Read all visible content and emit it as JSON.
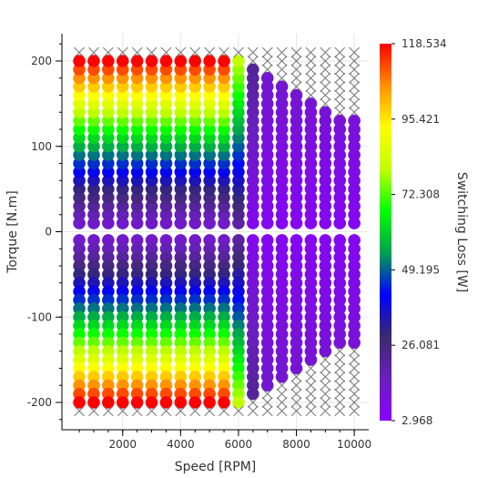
{
  "chart_data": {
    "type": "scatter",
    "title": "",
    "xlabel": "Speed [RPM]",
    "ylabel": "Torque [N.m]",
    "xlim": [
      -100,
      10500
    ],
    "ylim": [
      -232,
      232
    ],
    "xticks": [
      2000,
      4000,
      6000,
      8000,
      10000
    ],
    "xtick_labels": [
      "2000",
      "4000",
      "6000",
      "8000",
      "10000"
    ],
    "yticks": [
      -200,
      -100,
      0,
      100,
      200
    ],
    "ytick_labels": [
      "-200",
      "-100",
      "0",
      "100",
      "200"
    ],
    "grid": true,
    "speeds": [
      500,
      1000,
      1500,
      2000,
      2500,
      3000,
      3500,
      4000,
      4500,
      5000,
      5500,
      6000,
      6500,
      7000,
      7500,
      8000,
      8500,
      9000,
      9500,
      10000
    ],
    "torque_step": 10,
    "max_torque_by_speed": [
      200,
      200,
      200,
      200,
      200,
      200,
      200,
      200,
      200,
      200,
      200,
      200,
      190,
      180,
      170,
      160,
      150,
      145,
      135,
      130
    ],
    "grid_max_torque": 210,
    "infeasible_marker": "x-marker",
    "loss_model": "Loss increases with |torque|; low-speed region (<=6000 RPM) spans the full color range, high-speed region (>6000 RPM) stays near the minimum.",
    "colorbar": {
      "label": "Switching Loss [W]",
      "min": 2.968,
      "max": 118.534,
      "ticks": [
        "118.534",
        "95.421",
        "72.308",
        "49.195",
        "26.081",
        "2.968"
      ],
      "colormap": [
        "#8b00ff",
        "#6a1fbf",
        "#3b2a6e",
        "#0000ff",
        "#00a050",
        "#00ff00",
        "#c0ff00",
        "#ffff00",
        "#ff9000",
        "#ff0000"
      ]
    }
  }
}
